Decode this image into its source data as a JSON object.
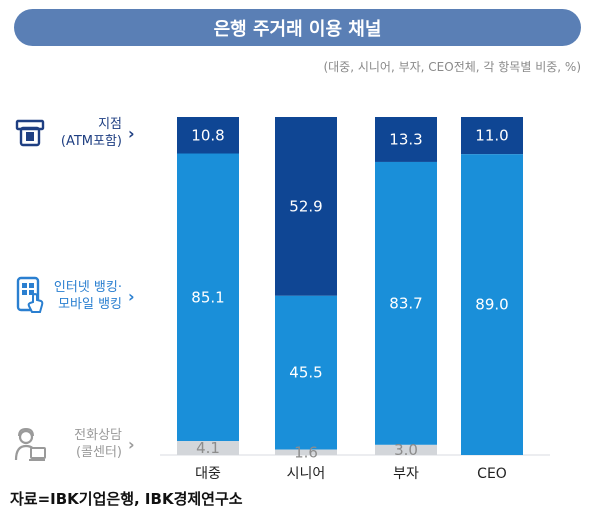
{
  "title": "은행 주거래 이용 채널",
  "subtitle": "(대중, 시니어, 부자, CEO전체, 각 항목별 비중, %)",
  "source": "자료=IBK기업은행, IBK경제연구소",
  "categories_panel": [
    {
      "lines": [
        "지점",
        "(ATM포함)"
      ],
      "icon": "atm-icon",
      "color": "#1f3f82"
    },
    {
      "lines": [
        "인터넷 뱅킹·",
        "모바일 뱅킹"
      ],
      "icon": "mobile-phone-icon",
      "color": "#2a7fd0"
    },
    {
      "lines": [
        "전화상담",
        "(콜센터)"
      ],
      "icon": "call-center-icon",
      "color": "#9a9a9a"
    }
  ],
  "chart_data": {
    "type": "bar",
    "stacked": true,
    "categories": [
      "대중",
      "시니어",
      "부자",
      "CEO"
    ],
    "series": [
      {
        "name": "지점(ATM포함)",
        "values": [
          10.8,
          52.9,
          13.3,
          11.0
        ],
        "color": "#0f4694"
      },
      {
        "name": "인터넷 뱅킹·모바일 뱅킹",
        "values": [
          85.1,
          45.5,
          83.7,
          89.0
        ],
        "color": "#1a8fd9"
      },
      {
        "name": "전화상담(콜센터)",
        "values": [
          4.1,
          1.6,
          3.0,
          0.0
        ],
        "color": "#d3d6da"
      }
    ],
    "value_labels": [
      [
        "10.8",
        "52.9",
        "13.3",
        "11.0"
      ],
      [
        "85.1",
        "45.5",
        "83.7",
        "89.0"
      ],
      [
        "4.1",
        "1.6",
        "3.0",
        ""
      ]
    ],
    "ylim": [
      0,
      100
    ],
    "grid": false,
    "legend": "left"
  }
}
